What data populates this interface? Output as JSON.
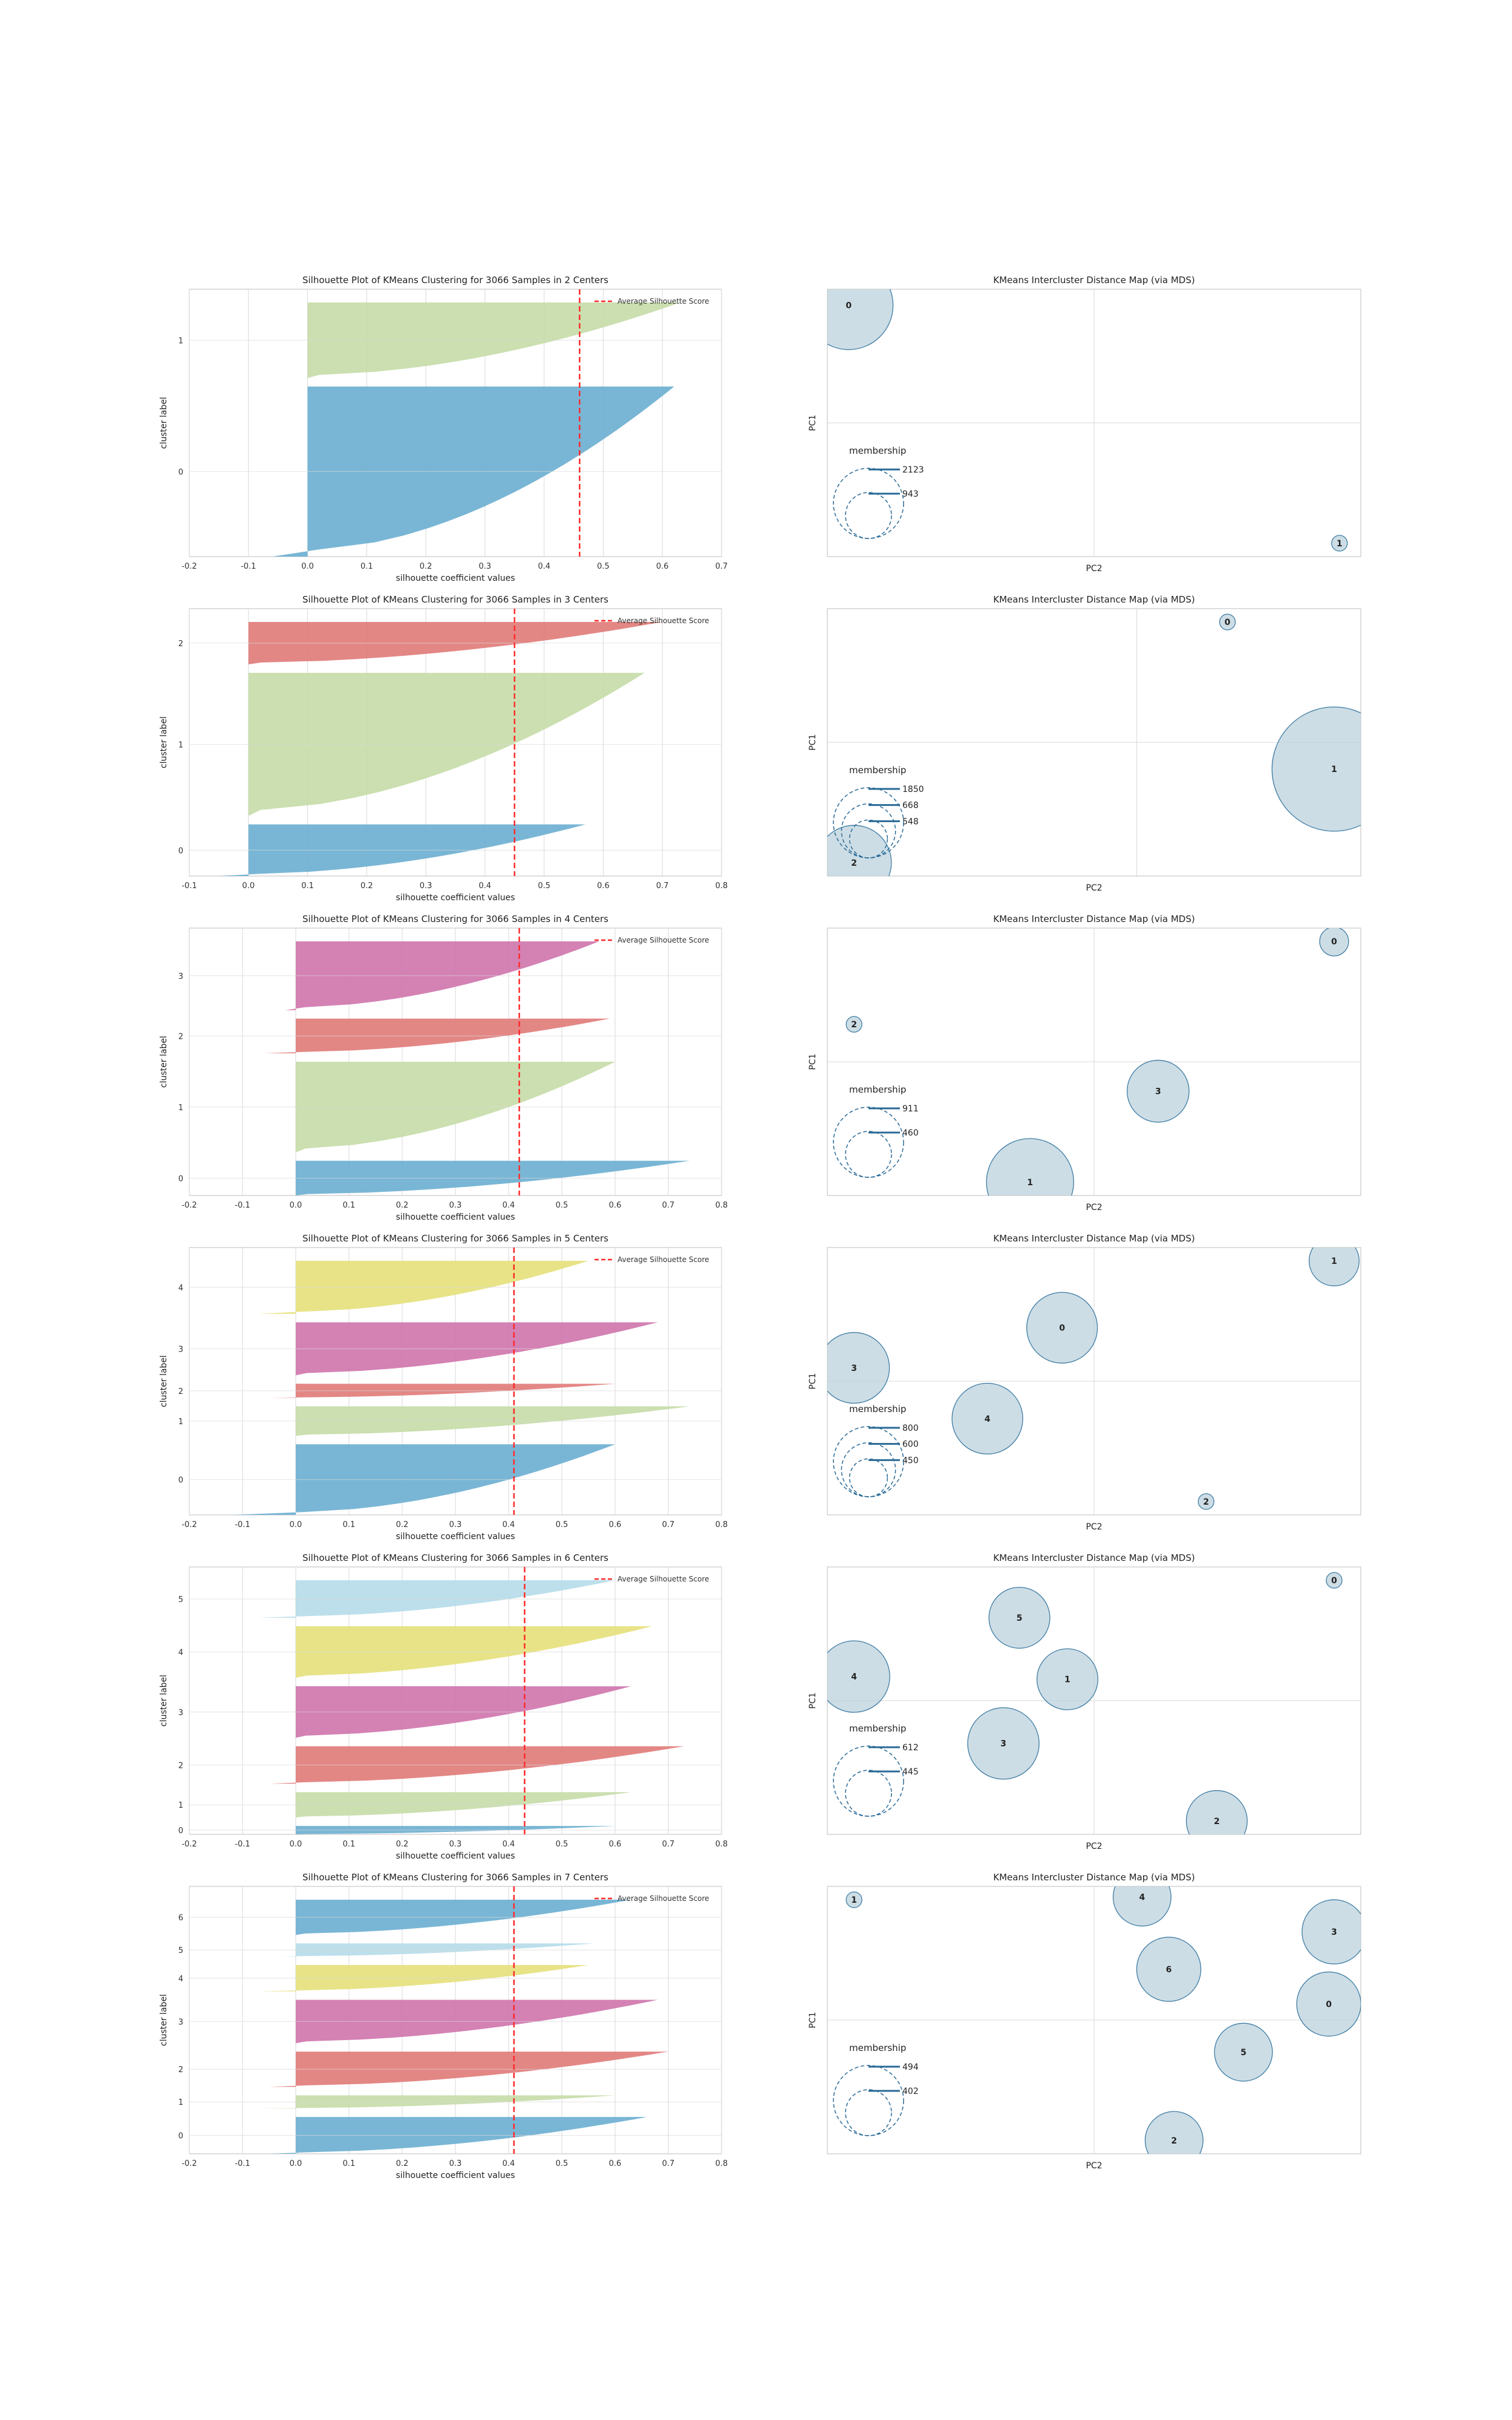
{
  "colors": {
    "cluster": [
      "#6aaed0",
      "#c5dba7",
      "#e07a78",
      "#cf73ac",
      "#e5e07a",
      "#b5dce9",
      "#6aaed0"
    ],
    "avg_line": "#ff2b2b",
    "map_fill": "#bcd1dc",
    "map_stroke": "#3f7da5",
    "membership": "#2a6a96",
    "grid": "#d9d9d9",
    "frame": "#c9c9c9"
  },
  "chart_data": [
    {
      "type": "area",
      "kind": "silhouette",
      "title": "Silhouette Plot of KMeans Clustering for 3066 Samples in 2 Centers",
      "xlabel": "silhouette coefficient values",
      "ylabel": "cluster label",
      "xlim": [
        -0.2,
        0.7
      ],
      "xticks": [
        "-0.2",
        "-0.1",
        "0.0",
        "0.1",
        "0.2",
        "0.3",
        "0.4",
        "0.5",
        "0.6",
        "0.7"
      ],
      "legend": {
        "label": "Average Silhouette Score",
        "position": "top-right"
      },
      "average_score": 0.46,
      "clusters": [
        {
          "label": "0",
          "size": 2123,
          "max": 0.62,
          "min": -0.06
        },
        {
          "label": "1",
          "size": 943,
          "max": 0.63,
          "min": 0.0
        }
      ]
    },
    {
      "type": "scatter",
      "kind": "intercluster",
      "title": "KMeans Intercluster Distance Map (via MDS)",
      "xlabel": "PC2",
      "ylabel": "PC1",
      "membership_label": "membership",
      "legend_sizes": [
        "943",
        "2123"
      ],
      "centers": [
        {
          "label": "0",
          "x": 0.04,
          "y": 0.06,
          "size": 943
        },
        {
          "label": "1",
          "x": 0.96,
          "y": 0.95,
          "size": 1
        }
      ]
    },
    {
      "type": "area",
      "kind": "silhouette",
      "title": "Silhouette Plot of KMeans Clustering for 3066 Samples in 3 Centers",
      "xlabel": "silhouette coefficient values",
      "ylabel": "cluster label",
      "xlim": [
        -0.1,
        0.8
      ],
      "xticks": [
        "-0.1",
        "0.0",
        "0.1",
        "0.2",
        "0.3",
        "0.4",
        "0.5",
        "0.6",
        "0.7",
        "0.8"
      ],
      "legend": {
        "label": "Average Silhouette Score",
        "position": "top-right"
      },
      "average_score": 0.45,
      "clusters": [
        {
          "label": "0",
          "size": 668,
          "max": 0.57,
          "min": -0.05
        },
        {
          "label": "1",
          "size": 1850,
          "max": 0.67,
          "min": 0.0
        },
        {
          "label": "2",
          "size": 548,
          "max": 0.7,
          "min": 0.0
        }
      ]
    },
    {
      "type": "scatter",
      "kind": "intercluster",
      "title": "KMeans Intercluster Distance Map (via MDS)",
      "xlabel": "PC2",
      "ylabel": "PC1",
      "membership_label": "membership",
      "legend_sizes": [
        "548",
        "668",
        "1850"
      ],
      "centers": [
        {
          "label": "0",
          "x": 0.75,
          "y": 0.05,
          "size": 30
        },
        {
          "label": "1",
          "x": 0.95,
          "y": 0.6,
          "size": 1850
        },
        {
          "label": "2",
          "x": 0.05,
          "y": 0.95,
          "size": 668
        }
      ]
    },
    {
      "type": "area",
      "kind": "silhouette",
      "title": "Silhouette Plot of KMeans Clustering for 3066 Samples in 4 Centers",
      "xlabel": "silhouette coefficient values",
      "ylabel": "cluster label",
      "xlim": [
        -0.2,
        0.8
      ],
      "xticks": [
        "-0.2",
        "-0.1",
        "0.0",
        "0.1",
        "0.2",
        "0.3",
        "0.4",
        "0.5",
        "0.6",
        "0.7",
        "0.8"
      ],
      "legend": {
        "label": "Average Silhouette Score",
        "position": "top-right"
      },
      "average_score": 0.42,
      "clusters": [
        {
          "label": "0",
          "size": 460,
          "max": 0.74,
          "min": 0.0
        },
        {
          "label": "1",
          "size": 1200,
          "max": 0.6,
          "min": 0.0
        },
        {
          "label": "2",
          "size": 460,
          "max": 0.59,
          "min": -0.06
        },
        {
          "label": "3",
          "size": 911,
          "max": 0.57,
          "min": -0.02
        }
      ]
    },
    {
      "type": "scatter",
      "kind": "intercluster",
      "title": "KMeans Intercluster Distance Map (via MDS)",
      "xlabel": "PC2",
      "ylabel": "PC1",
      "membership_label": "membership",
      "legend_sizes": [
        "460",
        "911"
      ],
      "centers": [
        {
          "label": "0",
          "x": 0.95,
          "y": 0.05,
          "size": 100
        },
        {
          "label": "1",
          "x": 0.38,
          "y": 0.95,
          "size": 911
        },
        {
          "label": "2",
          "x": 0.05,
          "y": 0.36,
          "size": 30
        },
        {
          "label": "3",
          "x": 0.62,
          "y": 0.61,
          "size": 460
        }
      ]
    },
    {
      "type": "area",
      "kind": "silhouette",
      "title": "Silhouette Plot of KMeans Clustering for 3066 Samples in 5 Centers",
      "xlabel": "silhouette coefficient values",
      "ylabel": "cluster label",
      "xlim": [
        -0.2,
        0.8
      ],
      "xticks": [
        "-0.2",
        "-0.1",
        "0.0",
        "0.1",
        "0.2",
        "0.3",
        "0.4",
        "0.5",
        "0.6",
        "0.7",
        "0.8"
      ],
      "legend": {
        "label": "Average Silhouette Score",
        "position": "top-right"
      },
      "average_score": 0.41,
      "clusters": [
        {
          "label": "0",
          "size": 600,
          "max": 0.6,
          "min": -0.12
        },
        {
          "label": "1",
          "size": 250,
          "max": 0.74,
          "min": 0.0
        },
        {
          "label": "2",
          "size": 120,
          "max": 0.6,
          "min": -0.05
        },
        {
          "label": "3",
          "size": 450,
          "max": 0.68,
          "min": 0.0
        },
        {
          "label": "4",
          "size": 450,
          "max": 0.55,
          "min": -0.07
        }
      ]
    },
    {
      "type": "scatter",
      "kind": "intercluster",
      "title": "KMeans Intercluster Distance Map (via MDS)",
      "xlabel": "PC2",
      "ylabel": "PC1",
      "membership_label": "membership",
      "legend_sizes": [
        "450",
        "600",
        "800"
      ],
      "centers": [
        {
          "label": "0",
          "x": 0.44,
          "y": 0.3,
          "size": 600
        },
        {
          "label": "1",
          "x": 0.95,
          "y": 0.05,
          "size": 300
        },
        {
          "label": "2",
          "x": 0.71,
          "y": 0.95,
          "size": 30
        },
        {
          "label": "3",
          "x": 0.05,
          "y": 0.45,
          "size": 600
        },
        {
          "label": "4",
          "x": 0.3,
          "y": 0.64,
          "size": 600
        }
      ]
    },
    {
      "type": "area",
      "kind": "silhouette",
      "title": "Silhouette Plot of KMeans Clustering for 3066 Samples in 6 Centers",
      "xlabel": "silhouette coefficient values",
      "ylabel": "cluster label",
      "xlim": [
        -0.2,
        0.8
      ],
      "xticks": [
        "-0.2",
        "-0.1",
        "0.0",
        "0.1",
        "0.2",
        "0.3",
        "0.4",
        "0.5",
        "0.6",
        "0.7",
        "0.8"
      ],
      "legend": {
        "label": "Average Silhouette Score",
        "position": "top-right"
      },
      "average_score": 0.43,
      "clusters": [
        {
          "label": "0",
          "size": 100,
          "max": 0.6,
          "min": 0.0
        },
        {
          "label": "1",
          "size": 300,
          "max": 0.63,
          "min": 0.0
        },
        {
          "label": "2",
          "size": 445,
          "max": 0.73,
          "min": -0.05
        },
        {
          "label": "3",
          "size": 612,
          "max": 0.63,
          "min": 0.0
        },
        {
          "label": "4",
          "size": 612,
          "max": 0.67,
          "min": 0.0
        },
        {
          "label": "5",
          "size": 445,
          "max": 0.6,
          "min": -0.07
        }
      ]
    },
    {
      "type": "scatter",
      "kind": "intercluster",
      "title": "KMeans Intercluster Distance Map (via MDS)",
      "xlabel": "PC2",
      "ylabel": "PC1",
      "membership_label": "membership",
      "legend_sizes": [
        "445",
        "612"
      ],
      "centers": [
        {
          "label": "0",
          "x": 0.95,
          "y": 0.05,
          "size": 30
        },
        {
          "label": "1",
          "x": 0.45,
          "y": 0.42,
          "size": 445
        },
        {
          "label": "2",
          "x": 0.73,
          "y": 0.95,
          "size": 445
        },
        {
          "label": "3",
          "x": 0.33,
          "y": 0.66,
          "size": 612
        },
        {
          "label": "4",
          "x": 0.05,
          "y": 0.41,
          "size": 612
        },
        {
          "label": "5",
          "x": 0.36,
          "y": 0.19,
          "size": 445
        }
      ]
    },
    {
      "type": "area",
      "kind": "silhouette",
      "title": "Silhouette Plot of KMeans Clustering for 3066 Samples in 7 Centers",
      "xlabel": "silhouette coefficient values",
      "ylabel": "cluster label",
      "xlim": [
        -0.2,
        0.8
      ],
      "xticks": [
        "-0.2",
        "-0.1",
        "0.0",
        "0.1",
        "0.2",
        "0.3",
        "0.4",
        "0.5",
        "0.6",
        "0.7",
        "0.8"
      ],
      "legend": {
        "label": "Average Silhouette Score",
        "position": "top-right"
      },
      "average_score": 0.41,
      "clusters": [
        {
          "label": "0",
          "size": 420,
          "max": 0.66,
          "min": -0.05
        },
        {
          "label": "1",
          "size": 150,
          "max": 0.6,
          "min": -0.07
        },
        {
          "label": "2",
          "size": 402,
          "max": 0.7,
          "min": -0.05
        },
        {
          "label": "3",
          "size": 494,
          "max": 0.68,
          "min": 0.0
        },
        {
          "label": "4",
          "size": 300,
          "max": 0.55,
          "min": -0.07
        },
        {
          "label": "5",
          "size": 150,
          "max": 0.56,
          "min": -0.03
        },
        {
          "label": "6",
          "size": 402,
          "max": 0.63,
          "min": 0.0
        }
      ]
    },
    {
      "type": "scatter",
      "kind": "intercluster",
      "title": "KMeans Intercluster Distance Map (via MDS)",
      "xlabel": "PC2",
      "ylabel": "PC1",
      "membership_label": "membership",
      "legend_sizes": [
        "402",
        "494"
      ],
      "centers": [
        {
          "label": "0",
          "x": 0.94,
          "y": 0.44,
          "size": 494
        },
        {
          "label": "1",
          "x": 0.05,
          "y": 0.05,
          "size": 30
        },
        {
          "label": "2",
          "x": 0.65,
          "y": 0.95,
          "size": 402
        },
        {
          "label": "3",
          "x": 0.95,
          "y": 0.17,
          "size": 494
        },
        {
          "label": "4",
          "x": 0.59,
          "y": 0.04,
          "size": 402
        },
        {
          "label": "5",
          "x": 0.78,
          "y": 0.62,
          "size": 402
        },
        {
          "label": "6",
          "x": 0.64,
          "y": 0.31,
          "size": 494
        }
      ]
    }
  ]
}
